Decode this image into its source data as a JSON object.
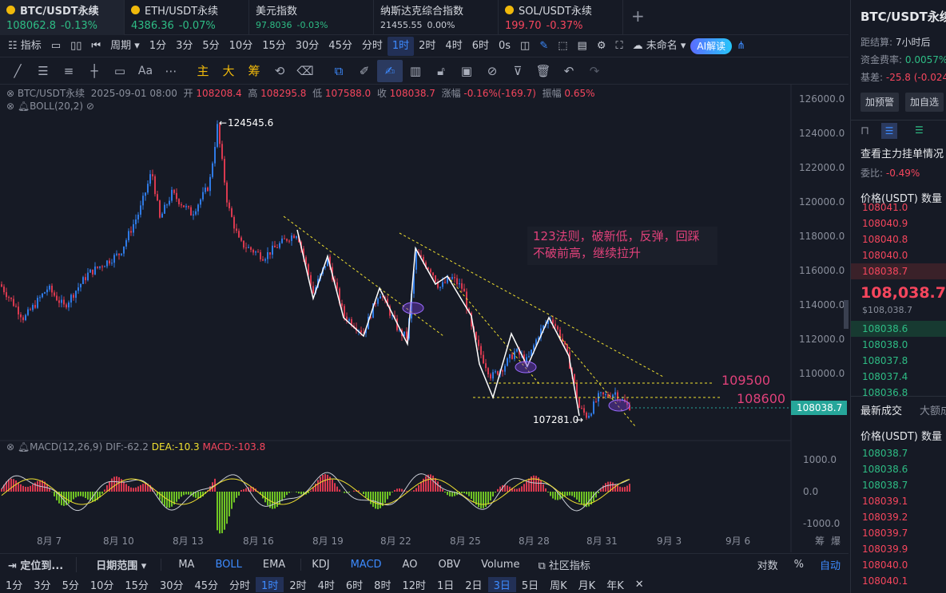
{
  "tabs": [
    {
      "name": "BTC/USDT永续",
      "price": "108062.8",
      "change": "-0.13%",
      "dir": "up"
    },
    {
      "name": "ETH/USDT永续",
      "price": "4386.36",
      "change": "-0.07%",
      "dir": "up"
    },
    {
      "name": "美元指数",
      "price": "97.8036",
      "change": "-0.03%",
      "dir": "up"
    },
    {
      "name": "纳斯达克综合指数",
      "price": "21455.55",
      "change": "0.00%",
      "dir": "flat"
    },
    {
      "name": "SOL/USDT永续",
      "price": "199.70",
      "change": "-0.37%",
      "dir": "dn"
    }
  ],
  "toolbar1": {
    "indicator": "指标",
    "period": "周期",
    "intervals": [
      "1分",
      "3分",
      "5分",
      "10分",
      "15分",
      "30分",
      "45分",
      "分时",
      "1时",
      "2时",
      "4时",
      "6时"
    ],
    "selected_interval": "1时",
    "seconds": "0s",
    "layout_name": "未命名",
    "ai": "AI解读"
  },
  "toolbar2": {
    "font_icon": "Aa",
    "zhu": "主",
    "da": "大",
    "chou": "筹"
  },
  "ohlc": {
    "symbol": "BTC/USDT永续",
    "date": "2025-09-01 08:00",
    "open_label": "开",
    "open": "108208.4",
    "high_label": "高",
    "high": "108295.8",
    "low_label": "低",
    "low": "107588.0",
    "close_label": "收",
    "close": "108038.7",
    "chg_label": "涨幅",
    "chg": "-0.16%(-169.7)",
    "amp_label": "振幅",
    "amp": "0.65%"
  },
  "boll": {
    "label": "BOLL(20,2)"
  },
  "macd": {
    "label": "MACD(12,26,9)",
    "dif": "DIF:-62.2",
    "dea": "DEA:-10.3",
    "macd": "MACD:-103.8",
    "ticks": [
      "1000.0",
      "0.0",
      "-1000.0"
    ]
  },
  "chart_data": {
    "type": "candlestick",
    "price_ticks": [
      "126000.0",
      "124000.0",
      "122000.0",
      "120000.0",
      "118000.0",
      "116000.0",
      "114000.0",
      "112000.0",
      "110000.0"
    ],
    "x_ticks": [
      "8月 7",
      "8月 10",
      "8月 13",
      "8月 16",
      "8月 19",
      "8月 22",
      "8月 25",
      "8月 28",
      "8月 31",
      "9月 3",
      "9月 6"
    ],
    "current_price": "108038.7",
    "high_label": "124545.6",
    "low_label": "107281.0",
    "level_1": "109500",
    "level_2": "108600",
    "annotation_line1": "123法则，破新低，反弹，回踩",
    "annotation_line2": "不破前高，继续拉升",
    "colors": {
      "up": "#2ebd85",
      "down": "#f6465d",
      "candle_up": "#2f7ae5",
      "candle_dn": "#d9394f",
      "annot": "#e0417a",
      "trend": "#f0e030"
    }
  },
  "bottom1": {
    "locate": "定位到...",
    "range": "日期范围",
    "indicators": [
      "MA",
      "BOLL",
      "EMA",
      "KDJ",
      "MACD",
      "AO",
      "OBV",
      "Volume"
    ],
    "community": "社区指标",
    "log": "对数",
    "pct": "%",
    "auto": "自动"
  },
  "bottom2": [
    "1分",
    "3分",
    "5分",
    "10分",
    "15分",
    "30分",
    "45分",
    "分时",
    "1时",
    "2时",
    "4时",
    "6时",
    "8时",
    "12时",
    "1日",
    "2日",
    "3日",
    "5日",
    "周K",
    "月K",
    "年K"
  ],
  "bottom2_selected": [
    "1时",
    "3日"
  ],
  "right": {
    "title": "BTC/USDT永续",
    "settle_label": "距结算:",
    "settle": "7小时后",
    "funding_label": "资金费率:",
    "funding": "0.0057%",
    "basis_label": "基差:",
    "basis": "-25.8 (-0.024",
    "add_alert": "加预警",
    "add_fav": "加自选",
    "orderbook_title": "查看主力挂单情况",
    "wei_label": "委比:",
    "wei": "-0.49%",
    "price_hdr": "价格(USDT)",
    "qty_hdr": "数量",
    "asks": [
      "108041.0",
      "108040.9",
      "108040.8",
      "108040.0",
      "108038.7"
    ],
    "last": "108,038.7",
    "last_usd": "$108,038.7",
    "bids": [
      "108038.6",
      "108038.0",
      "108037.8",
      "108037.4",
      "108036.8"
    ],
    "trades_tab": "最新成交",
    "big_tab": "大额成",
    "trades": [
      "108038.7",
      "108038.6",
      "108038.7",
      "108039.1",
      "108039.2",
      "108039.7",
      "108039.9",
      "108040.0",
      "108040.1"
    ]
  }
}
